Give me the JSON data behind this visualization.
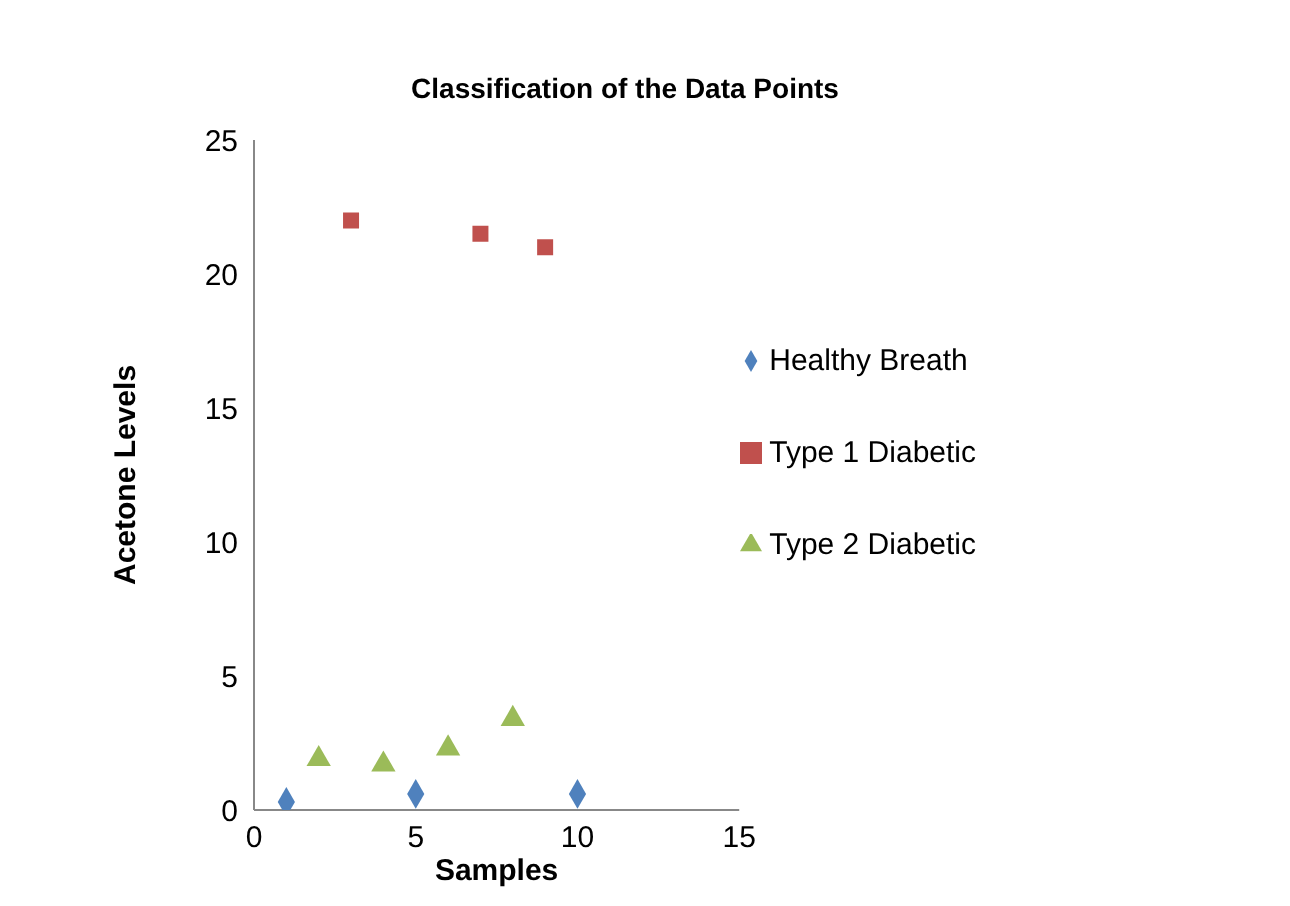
{
  "chart_data": {
    "type": "scatter",
    "title": "Classification of the Data Points",
    "xlabel": "Samples",
    "ylabel": "Acetone Levels",
    "series": [
      {
        "name": "Healthy Breath",
        "color": "#4f81bd",
        "marker": "diamond",
        "x": [
          1,
          5,
          10
        ],
        "values": [
          0.3,
          0.6,
          0.6
        ]
      },
      {
        "name": "Type 1 Diabetic",
        "color": "#c0504d",
        "marker": "square",
        "x": [
          3,
          7,
          9
        ],
        "values": [
          22,
          21.5,
          21
        ]
      },
      {
        "name": "Type 2 Diabetic",
        "color": "#9bbb59",
        "marker": "triangle",
        "x": [
          2,
          4,
          6,
          8
        ],
        "values": [
          1.9,
          1.7,
          2.3,
          3.4
        ]
      }
    ],
    "xlim": [
      0,
      15
    ],
    "xticks": [
      0,
      5,
      10,
      15
    ],
    "ylim": [
      0,
      25
    ],
    "yticks": [
      0,
      5,
      10,
      15,
      20,
      25
    ],
    "grid": false,
    "legend": "right"
  }
}
